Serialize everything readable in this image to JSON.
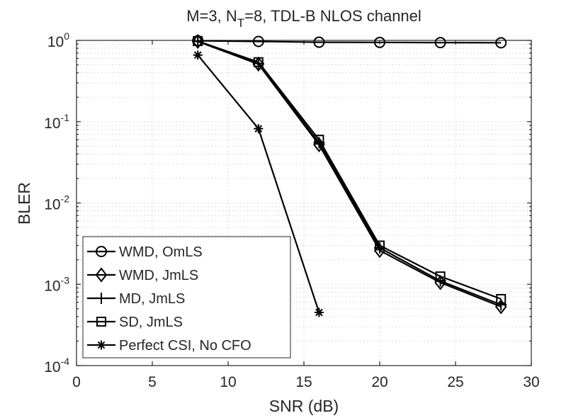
{
  "chart_data": {
    "type": "line",
    "title_parts": {
      "a": "M=3, N",
      "sub": "T",
      "b": "=8, TDL-B NLOS channel"
    },
    "xlabel": "SNR (dB)",
    "ylabel": "BLER",
    "xlim": [
      0,
      30
    ],
    "ylim": [
      0.0001,
      1
    ],
    "yscale": "log",
    "xticks": [
      0,
      5,
      10,
      15,
      20,
      25,
      30
    ],
    "yticks": [
      {
        "base": "10",
        "exp": "0",
        "value": 1
      },
      {
        "base": "10",
        "exp": "-1",
        "value": 0.1
      },
      {
        "base": "10",
        "exp": "-2",
        "value": 0.01
      },
      {
        "base": "10",
        "exp": "-3",
        "value": 0.001
      },
      {
        "base": "10",
        "exp": "-4",
        "value": 0.0001
      }
    ],
    "grid": true,
    "legend_position": "bottom-left",
    "series": [
      {
        "name": "WMD, OmLS",
        "marker": "circle",
        "x": [
          8,
          12,
          16,
          20,
          24,
          28
        ],
        "y": [
          0.99,
          0.97,
          0.95,
          0.945,
          0.94,
          0.935
        ]
      },
      {
        "name": "WMD, JmLS",
        "marker": "diamond",
        "x": [
          8,
          12,
          16,
          20,
          24,
          28
        ],
        "y": [
          0.97,
          0.51,
          0.052,
          0.0026,
          0.00105,
          0.00053
        ]
      },
      {
        "name": "MD, JmLS",
        "marker": "plus",
        "x": [
          8,
          12,
          16,
          20,
          24,
          28
        ],
        "y": [
          0.97,
          0.52,
          0.055,
          0.0028,
          0.0011,
          0.00056
        ]
      },
      {
        "name": "SD, JmLS",
        "marker": "square",
        "x": [
          8,
          12,
          16,
          20,
          24,
          28
        ],
        "y": [
          0.98,
          0.54,
          0.06,
          0.003,
          0.00125,
          0.00066
        ]
      },
      {
        "name": "Perfect CSI, No CFO",
        "marker": "asterisk",
        "x": [
          8,
          12,
          16
        ],
        "y": [
          0.66,
          0.082,
          0.00045
        ]
      }
    ]
  }
}
